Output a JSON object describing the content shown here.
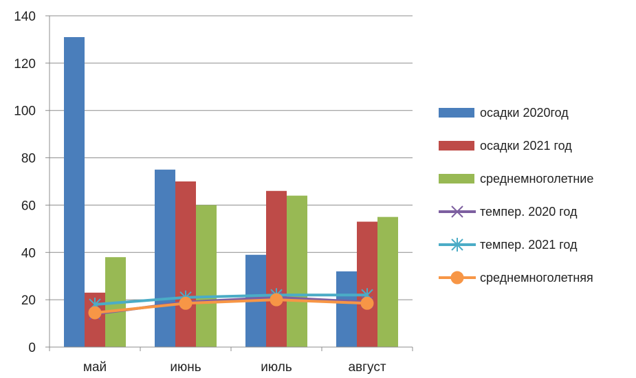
{
  "chart_data": {
    "type": "bar",
    "categories": [
      "май",
      "июнь",
      "июль",
      "август"
    ],
    "ylim": [
      0,
      140
    ],
    "yticks": [
      0,
      20,
      40,
      60,
      80,
      100,
      120,
      140
    ],
    "grid": true,
    "legend_position": "right",
    "series": [
      {
        "name": "осадки 2020год",
        "kind": "bar",
        "color": "#4A7EBB",
        "values": [
          131,
          75,
          39,
          32
        ]
      },
      {
        "name": "осадки 2021 год",
        "kind": "bar",
        "color": "#BE4B48",
        "values": [
          23,
          70,
          66,
          53
        ]
      },
      {
        "name": "среднемноголетние",
        "kind": "bar",
        "color": "#98B954",
        "values": [
          38,
          60,
          64,
          55
        ]
      },
      {
        "name": "темпер.  2020 год",
        "kind": "line",
        "marker": "x",
        "color": "#7D5FA0",
        "values": [
          14,
          19,
          21,
          19
        ]
      },
      {
        "name": "темпер.  2021 год",
        "kind": "line",
        "marker": "star",
        "color": "#4BACC6",
        "values": [
          18,
          21,
          22,
          22
        ]
      },
      {
        "name": "среднемноголетняя",
        "kind": "line",
        "marker": "circle",
        "color": "#F79646",
        "values": [
          14.5,
          18.5,
          20,
          18.5
        ]
      }
    ]
  }
}
